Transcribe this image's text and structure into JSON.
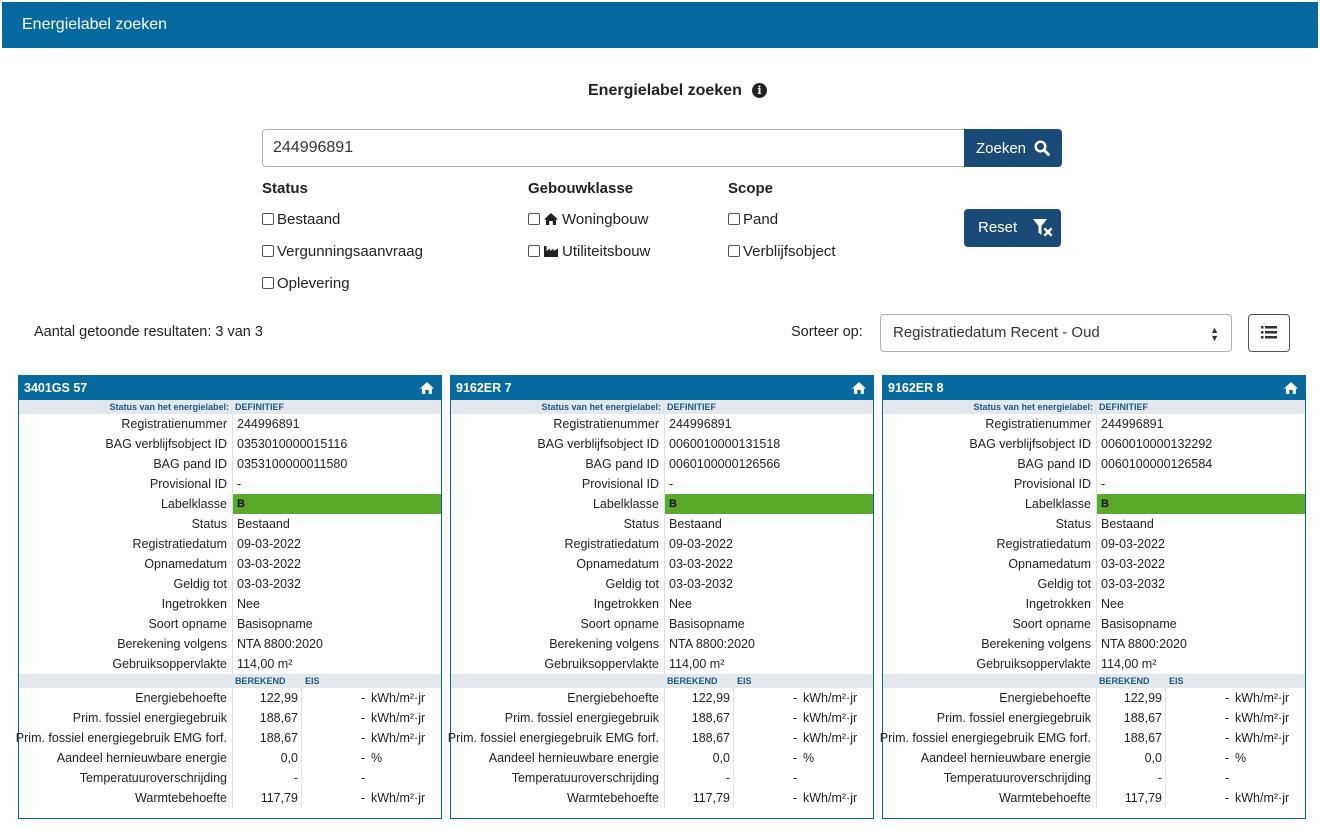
{
  "header": {
    "title": "Energielabel zoeken"
  },
  "search": {
    "title": "Energielabel zoeken",
    "value": "244996891",
    "button_label": "Zoeken",
    "reset_label": "Reset"
  },
  "filters": {
    "status": {
      "heading": "Status",
      "options": [
        "Bestaand",
        "Vergunningsaanvraag",
        "Oplevering"
      ]
    },
    "gebouwklasse": {
      "heading": "Gebouwklasse",
      "options": [
        "Woningbouw",
        "Utiliteitsbouw"
      ]
    },
    "scope": {
      "heading": "Scope",
      "options": [
        "Pand",
        "Verblijfsobject"
      ]
    }
  },
  "results": {
    "count_text": "Aantal getoonde resultaten: 3 van 3",
    "sort_label": "Sorteer op:",
    "sort_value": "Registratiedatum Recent - Oud"
  },
  "card_labels": {
    "status_key": "Status van het energielabel:",
    "registratienummer": "Registratienummer",
    "bag_vbo": "BAG verblijfsobject ID",
    "bag_pand": "BAG pand ID",
    "provisional": "Provisional ID",
    "labelklasse": "Labelklasse",
    "status": "Status",
    "registratiedatum": "Registratiedatum",
    "opnamedatum": "Opnamedatum",
    "geldig_tot": "Geldig tot",
    "ingetrokken": "Ingetrokken",
    "soort_opname": "Soort opname",
    "berekening": "Berekening volgens",
    "gebruiksoppervlakte": "Gebruiksoppervlakte",
    "berekend": "BEREKEND",
    "eis": "EIS",
    "energiebehoefte": "Energiebehoefte",
    "prim_fossiel": "Prim. fossiel energiegebruik",
    "prim_fossiel_emg": "Prim. fossiel energiegebruik EMG forf.",
    "aandeel": "Aandeel hernieuwbare energie",
    "temperatuur": "Temperatuuroverschrijding",
    "warmtebehoefte": "Warmtebehoefte"
  },
  "cards": [
    {
      "address": "3401GS 57",
      "status_value": "DEFINITIEF",
      "registratienummer": "244996891",
      "bag_vbo": "0353010000015116",
      "bag_pand": "0353100000011580",
      "provisional": "-",
      "labelklasse": "B",
      "status": "Bestaand",
      "registratiedatum": "09-03-2022",
      "opnamedatum": "03-03-2022",
      "geldig_tot": "03-03-2032",
      "ingetrokken": "Nee",
      "soort_opname": "Basisopname",
      "berekening": "NTA 8800:2020",
      "gebruiksoppervlakte": "114,00 m²",
      "energy": [
        {
          "b": "122,99",
          "e": "-",
          "u": "kWh/m²·jr"
        },
        {
          "b": "188,67",
          "e": "-",
          "u": "kWh/m²·jr"
        },
        {
          "b": "188,67",
          "e": "-",
          "u": "kWh/m²·jr"
        },
        {
          "b": "0,0",
          "e": "-",
          "u": "%"
        },
        {
          "b": "-",
          "e": "-",
          "u": ""
        },
        {
          "b": "117,79",
          "e": "-",
          "u": "kWh/m²·jr"
        }
      ]
    },
    {
      "address": "9162ER 7",
      "status_value": "DEFINITIEF",
      "registratienummer": "244996891",
      "bag_vbo": "0060010000131518",
      "bag_pand": "0060100000126566",
      "provisional": "-",
      "labelklasse": "B",
      "status": "Bestaand",
      "registratiedatum": "09-03-2022",
      "opnamedatum": "03-03-2022",
      "geldig_tot": "03-03-2032",
      "ingetrokken": "Nee",
      "soort_opname": "Basisopname",
      "berekening": "NTA 8800:2020",
      "gebruiksoppervlakte": "114,00 m²",
      "energy": [
        {
          "b": "122,99",
          "e": "-",
          "u": "kWh/m²·jr"
        },
        {
          "b": "188,67",
          "e": "-",
          "u": "kWh/m²·jr"
        },
        {
          "b": "188,67",
          "e": "-",
          "u": "kWh/m²·jr"
        },
        {
          "b": "0,0",
          "e": "-",
          "u": "%"
        },
        {
          "b": "-",
          "e": "-",
          "u": ""
        },
        {
          "b": "117,79",
          "e": "-",
          "u": "kWh/m²·jr"
        }
      ]
    },
    {
      "address": "9162ER 8",
      "status_value": "DEFINITIEF",
      "registratienummer": "244996891",
      "bag_vbo": "0060010000132292",
      "bag_pand": "0060100000126584",
      "provisional": "-",
      "labelklasse": "B",
      "status": "Bestaand",
      "registratiedatum": "09-03-2022",
      "opnamedatum": "03-03-2022",
      "geldig_tot": "03-03-2032",
      "ingetrokken": "Nee",
      "soort_opname": "Basisopname",
      "berekening": "NTA 8800:2020",
      "gebruiksoppervlakte": "114,00 m²",
      "energy": [
        {
          "b": "122,99",
          "e": "-",
          "u": "kWh/m²·jr"
        },
        {
          "b": "188,67",
          "e": "-",
          "u": "kWh/m²·jr"
        },
        {
          "b": "188,67",
          "e": "-",
          "u": "kWh/m²·jr"
        },
        {
          "b": "0,0",
          "e": "-",
          "u": "%"
        },
        {
          "b": "-",
          "e": "-",
          "u": ""
        },
        {
          "b": "117,79",
          "e": "-",
          "u": "kWh/m²·jr"
        }
      ]
    }
  ],
  "colors": {
    "brand": "#0669a0",
    "button": "#1a4a78",
    "label_b": "#5aaa2a"
  },
  "icons": [
    "info-icon",
    "search-icon",
    "home-icon",
    "factory-icon",
    "filter-clear-icon",
    "list-icon",
    "sort-arrows-icon"
  ]
}
